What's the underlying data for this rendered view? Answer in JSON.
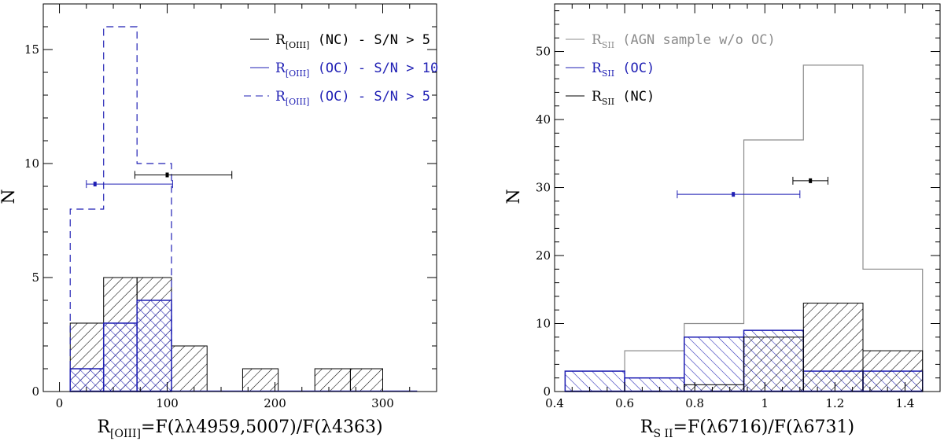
{
  "chart_data": [
    {
      "id": "left",
      "type": "histogram",
      "title": "",
      "xlabel": "R[OIII]=F(λλ4959,5007)/F(λ4363)",
      "xlabel_main": "R",
      "xlabel_sub": "[OIII]",
      "xlabel_rest": "=F(λλ4959,5007)/F(λ4363)",
      "ylabel": "N",
      "xlim": [
        -15,
        350
      ],
      "ylim": [
        0,
        17
      ],
      "xticks": [
        0,
        100,
        200,
        300
      ],
      "xtick_labels": [
        "0",
        "100",
        "200",
        "300"
      ],
      "yticks": [
        0,
        5,
        10,
        15
      ],
      "ytick_labels": [
        "0",
        "5",
        "10",
        "15"
      ],
      "legend": [
        {
          "main": "R",
          "sub": "[OIII]",
          "rest": " (NC) - S/N > 5",
          "color": "#000000",
          "style": "solid"
        },
        {
          "main": "R",
          "sub": "[OIII]",
          "rest": " (OC) - S/N > 10",
          "color": "#1f1fb4",
          "style": "solid"
        },
        {
          "main": "R",
          "sub": "[OIII]",
          "rest": " (OC) - S/N > 5",
          "color": "#1f1fb4",
          "style": "dashed"
        }
      ],
      "series": [
        {
          "name": "R[OIII] (NC) - S/N > 5",
          "color": "#000000",
          "style": "hatch-right",
          "edges": [
            10,
            41,
            72,
            104,
            137,
            170,
            203,
            237,
            270,
            300,
            332
          ],
          "values": [
            3,
            5,
            5,
            2,
            0,
            1,
            0,
            1,
            1,
            0
          ]
        },
        {
          "name": "R[OIII] (OC) - S/N > 10",
          "color": "#1f1fb4",
          "style": "crosshatch",
          "edges": [
            10,
            41,
            72,
            104,
            137,
            170,
            203,
            237,
            270,
            300,
            332
          ],
          "values": [
            1,
            3,
            4,
            0,
            0,
            0,
            0,
            0,
            0,
            0
          ]
        },
        {
          "name": "R[OIII] (OC) - S/N > 5",
          "color": "#1f1fb4",
          "style": "dashed-step",
          "edges": [
            10,
            41,
            72,
            104
          ],
          "values": [
            8,
            16,
            10
          ]
        }
      ],
      "errorbars": [
        {
          "x": 100,
          "xmin": 70,
          "xmax": 160,
          "y": 9.5,
          "color": "#000000"
        },
        {
          "x": 33,
          "xmin": 25,
          "xmax": 105,
          "y": 9.1,
          "color": "#1f1fb4"
        }
      ]
    },
    {
      "id": "right",
      "type": "histogram",
      "title": "",
      "xlabel": "RS II=F(λ6716)/F(λ6731)",
      "xlabel_main": "R",
      "xlabel_sub": "S II",
      "xlabel_rest": "=F(λ6716)/F(λ6731)",
      "ylabel": "N",
      "xlim": [
        0.4,
        1.5
      ],
      "ylim": [
        0,
        57
      ],
      "xticks": [
        0.4,
        0.6,
        0.8,
        1.0,
        1.2,
        1.4
      ],
      "xtick_labels": [
        "0.4",
        "0.6",
        "0.8",
        "1",
        "1.2",
        "1.4"
      ],
      "yticks": [
        0,
        10,
        20,
        30,
        40,
        50
      ],
      "ytick_labels": [
        "0",
        "10",
        "20",
        "30",
        "40",
        "50"
      ],
      "legend": [
        {
          "main": "R",
          "sub": "SII",
          "rest": " (AGN sample w/o OC)",
          "color": "#8c8c8c",
          "style": "solid"
        },
        {
          "main": "R",
          "sub": "SII",
          "rest": " (OC)",
          "color": "#1f1fb4",
          "style": "solid"
        },
        {
          "main": "R",
          "sub": "SII",
          "rest": " (NC)",
          "color": "#000000",
          "style": "solid"
        }
      ],
      "series": [
        {
          "name": "RSII (AGN sample w/o OC)",
          "color": "#8c8c8c",
          "style": "step",
          "edges": [
            0.43,
            0.6,
            0.77,
            0.94,
            1.11,
            1.28,
            1.45
          ],
          "values": [
            3,
            6,
            10,
            37,
            48,
            18
          ]
        },
        {
          "name": "RSII (OC)",
          "color": "#1f1fb4",
          "style": "hatch-left",
          "edges": [
            0.43,
            0.6,
            0.77,
            0.94,
            1.11,
            1.28,
            1.45
          ],
          "values": [
            3,
            2,
            8,
            9,
            3,
            3
          ]
        },
        {
          "name": "RSII (NC)",
          "color": "#000000",
          "style": "hatch-right",
          "edges": [
            0.43,
            0.6,
            0.77,
            0.94,
            1.11,
            1.28,
            1.45
          ],
          "values": [
            0,
            0,
            1,
            8,
            13,
            6
          ]
        }
      ],
      "errorbars": [
        {
          "x": 1.13,
          "xmin": 1.08,
          "xmax": 1.18,
          "y": 31,
          "color": "#000000"
        },
        {
          "x": 0.91,
          "xmin": 0.75,
          "xmax": 1.1,
          "y": 29,
          "color": "#1f1fb4"
        }
      ]
    }
  ]
}
